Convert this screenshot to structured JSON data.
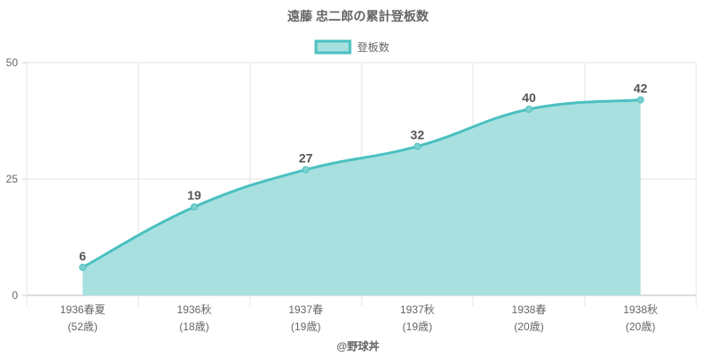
{
  "chart_data": {
    "type": "line",
    "title": "遠藤 忠二郎の累計登板数",
    "categories": [
      "1936春夏",
      "1936秋",
      "1937春",
      "1937秋",
      "1938春",
      "1938秋"
    ],
    "sublabels": [
      "(52歳)",
      "(18歳)",
      "(19歳)",
      "(19歳)",
      "(20歳)",
      "(20歳)"
    ],
    "series": [
      {
        "name": "登板数",
        "values": [
          6,
          19,
          27,
          32,
          40,
          42
        ]
      }
    ],
    "ylim": [
      0,
      50
    ],
    "yticks": [
      0,
      25,
      50
    ],
    "fill": true,
    "grid": true,
    "legend": "top",
    "colors": {
      "line": "#4bc0c0",
      "fill": "#a6dfdf"
    }
  },
  "credit": "@野球丼"
}
